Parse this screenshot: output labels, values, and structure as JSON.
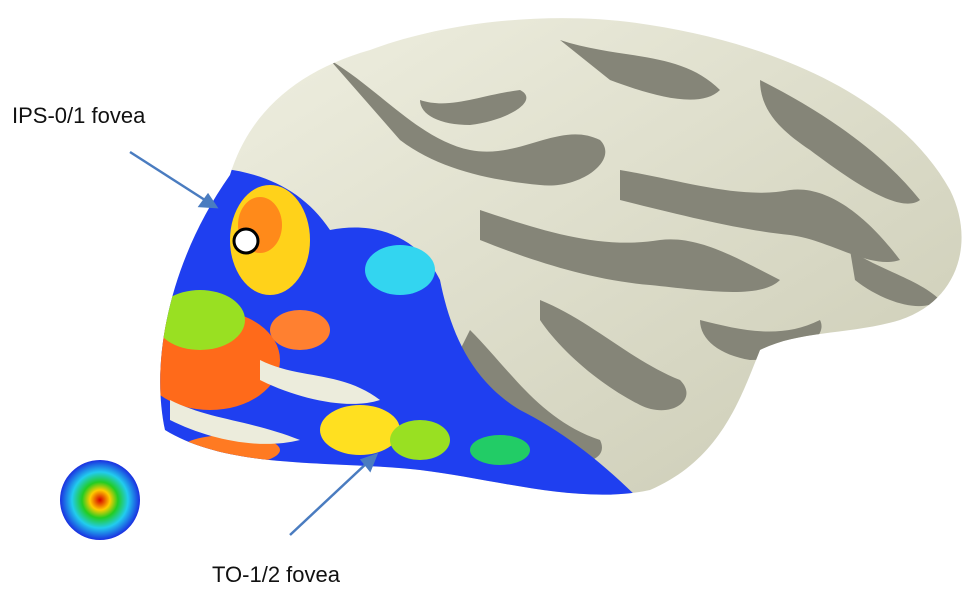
{
  "annotations": [
    "IPS-0/1 fovea",
    "TO-1/2 fovea"
  ]
}
